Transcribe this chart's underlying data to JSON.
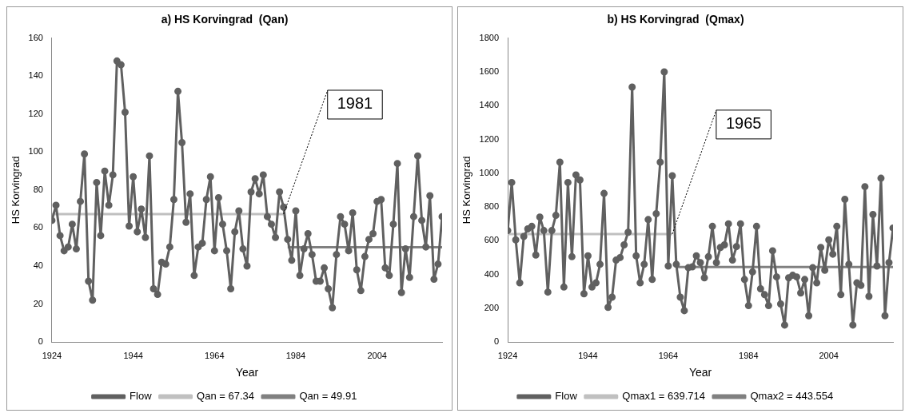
{
  "chart_data": [
    {
      "type": "line",
      "title": "a) HS Korvingrad  (Qan)",
      "xlabel": "Year",
      "ylabel": "HS Korvingrad",
      "xlim": [
        1924,
        2020
      ],
      "xticks": [
        1924,
        1944,
        1964,
        1984,
        2004
      ],
      "ylim": [
        0,
        160
      ],
      "yticks": [
        0,
        20,
        40,
        60,
        80,
        100,
        120,
        140,
        160
      ],
      "legend": "bottom",
      "annotations": [
        {
          "text": "1981",
          "x": 1981,
          "y": 67.34
        }
      ],
      "series": [
        {
          "name": "Flow",
          "color": "#606060",
          "marker": "circle",
          "x": [
            1924,
            1925,
            1926,
            1927,
            1928,
            1929,
            1930,
            1931,
            1932,
            1933,
            1934,
            1935,
            1936,
            1937,
            1938,
            1939,
            1940,
            1941,
            1942,
            1943,
            1944,
            1945,
            1946,
            1947,
            1948,
            1949,
            1950,
            1951,
            1952,
            1953,
            1954,
            1955,
            1956,
            1957,
            1958,
            1959,
            1960,
            1961,
            1962,
            1963,
            1964,
            1965,
            1966,
            1967,
            1968,
            1969,
            1970,
            1971,
            1972,
            1973,
            1974,
            1975,
            1976,
            1977,
            1978,
            1979,
            1980,
            1981,
            1982,
            1983,
            1984,
            1985,
            1986,
            1987,
            1988,
            1989,
            1990,
            1991,
            1992,
            1993,
            1994,
            1995,
            1996,
            1997,
            1998,
            1999,
            2000,
            2001,
            2002,
            2003,
            2004,
            2005,
            2006,
            2007,
            2008,
            2009,
            2010,
            2011,
            2012,
            2013,
            2014,
            2015,
            2016,
            2017,
            2018,
            2019,
            2020
          ],
          "values": [
            64,
            72,
            56,
            48,
            50,
            62,
            49,
            74,
            99,
            32,
            22,
            84,
            56,
            90,
            72,
            88,
            148,
            146,
            121,
            61,
            87,
            58,
            70,
            55,
            98,
            28,
            25,
            42,
            41,
            50,
            75,
            132,
            105,
            63,
            78,
            35,
            50,
            52,
            75,
            87,
            48,
            76,
            62,
            48,
            28,
            58,
            69,
            49,
            40,
            79,
            86,
            78,
            88,
            66,
            62,
            55,
            79,
            71,
            54,
            43,
            69,
            35,
            49,
            57,
            46,
            32,
            32,
            39,
            28,
            18,
            46,
            66,
            62,
            48,
            68,
            38,
            27,
            45,
            54,
            57,
            74,
            75,
            39,
            35,
            62,
            94,
            26,
            49,
            34,
            66,
            98,
            64,
            50,
            77,
            33,
            41,
            66
          ]
        },
        {
          "name": "Qan = 67.34",
          "color": "#c0c0c0",
          "marker": "none",
          "x": [
            1924,
            1981
          ],
          "values": [
            67.34,
            67.34
          ]
        },
        {
          "name": "Qan = 49.91",
          "color": "#808080",
          "marker": "none",
          "x": [
            1982,
            2020
          ],
          "values": [
            49.91,
            49.91
          ]
        }
      ]
    },
    {
      "type": "line",
      "title": "b) HS Korvingrad  (Qmax)",
      "xlabel": "Year",
      "ylabel": "HS Korvingrad",
      "xlim": [
        1924,
        2020
      ],
      "xticks": [
        1924,
        1944,
        1964,
        1984,
        2004
      ],
      "ylim": [
        0,
        1800
      ],
      "yticks": [
        0,
        200,
        400,
        600,
        800,
        1000,
        1200,
        1400,
        1600,
        1800
      ],
      "legend": "bottom",
      "annotations": [
        {
          "text": "1965",
          "x": 1965,
          "y": 639.714
        }
      ],
      "series": [
        {
          "name": "Flow",
          "color": "#606060",
          "marker": "circle",
          "x": [
            1924,
            1925,
            1926,
            1927,
            1928,
            1929,
            1930,
            1931,
            1932,
            1933,
            1934,
            1935,
            1936,
            1937,
            1938,
            1939,
            1940,
            1941,
            1942,
            1943,
            1944,
            1945,
            1946,
            1947,
            1948,
            1949,
            1950,
            1951,
            1952,
            1953,
            1954,
            1955,
            1956,
            1957,
            1958,
            1959,
            1960,
            1961,
            1962,
            1963,
            1964,
            1965,
            1966,
            1967,
            1968,
            1969,
            1970,
            1971,
            1972,
            1973,
            1974,
            1975,
            1976,
            1977,
            1978,
            1979,
            1980,
            1981,
            1982,
            1983,
            1984,
            1985,
            1986,
            1987,
            1988,
            1989,
            1990,
            1991,
            1992,
            1993,
            1994,
            1995,
            1996,
            1997,
            1998,
            1999,
            2000,
            2001,
            2002,
            2003,
            2004,
            2005,
            2006,
            2007,
            2008,
            2009,
            2010,
            2011,
            2012,
            2013,
            2014,
            2015,
            2016,
            2017,
            2018,
            2019,
            2020
          ],
          "values": [
            660,
            945,
            605,
            350,
            625,
            670,
            685,
            515,
            740,
            660,
            295,
            660,
            750,
            1065,
            325,
            945,
            505,
            990,
            960,
            285,
            510,
            325,
            350,
            460,
            880,
            205,
            265,
            485,
            500,
            575,
            650,
            1510,
            510,
            350,
            460,
            725,
            370,
            760,
            1065,
            1600,
            450,
            985,
            460,
            265,
            185,
            440,
            445,
            510,
            470,
            380,
            505,
            685,
            470,
            560,
            575,
            700,
            485,
            565,
            700,
            370,
            215,
            415,
            685,
            315,
            280,
            215,
            540,
            385,
            225,
            100,
            380,
            395,
            385,
            290,
            370,
            155,
            440,
            350,
            560,
            425,
            605,
            520,
            685,
            280,
            845,
            460,
            100,
            350,
            335,
            920,
            270,
            755,
            450,
            970,
            155,
            470,
            675
          ]
        },
        {
          "name": "Qmax1 = 639.714",
          "color": "#c0c0c0",
          "marker": "none",
          "x": [
            1924,
            1965
          ],
          "values": [
            639.714,
            639.714
          ]
        },
        {
          "name": "Qmax2 = 443.554",
          "color": "#808080",
          "marker": "none",
          "x": [
            1966,
            2020
          ],
          "values": [
            443.554,
            443.554
          ]
        }
      ]
    }
  ]
}
